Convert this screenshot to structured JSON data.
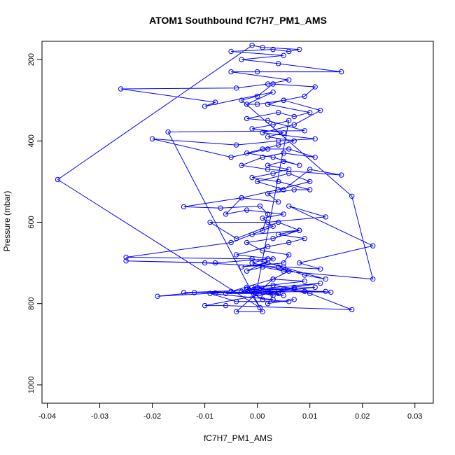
{
  "chart_data": {
    "type": "line",
    "title": "ATOM1 Southbound fC7H7_PM1_AMS",
    "xlabel": "fC7H7_PM1_AMS",
    "ylabel": "Pressure (mbar)",
    "xlim": [
      -0.041,
      0.0335
    ],
    "ylim": [
      1045,
      155
    ],
    "y_reversed": true,
    "x_ticks": [
      -0.04,
      -0.03,
      -0.02,
      -0.01,
      0.0,
      0.01,
      0.02,
      0.03
    ],
    "x_tick_labels": [
      "-0.04",
      "-0.03",
      "-0.02",
      "-0.01",
      "0.00",
      "0.01",
      "0.02",
      "0.03"
    ],
    "y_ticks": [
      200,
      400,
      600,
      800,
      1000
    ],
    "y_tick_labels": [
      "200",
      "400",
      "600",
      "800",
      "1000"
    ],
    "grid": false,
    "legend": "none",
    "series": [
      {
        "color": "#0000ff",
        "marker": "open-circle",
        "points": [
          [
            0.007,
            790
          ],
          [
            0.002,
            800
          ],
          [
            0.003,
            780
          ],
          [
            -0.001,
            770
          ],
          [
            0.005,
            765
          ],
          [
            0.01,
            775
          ],
          [
            0.018,
            815
          ],
          [
            -0.006,
            805
          ],
          [
            -0.01,
            805
          ],
          [
            0.004,
            770
          ],
          [
            0.011,
            760
          ],
          [
            -0.012,
            773
          ],
          [
            -0.019,
            782
          ],
          [
            -0.008,
            774
          ],
          [
            0.002,
            770
          ],
          [
            0.014,
            772
          ],
          [
            -0.001,
            760
          ],
          [
            0.009,
            745
          ],
          [
            0.003,
            740
          ],
          [
            -0.005,
            770
          ],
          [
            0.012,
            750
          ],
          [
            0.007,
            760
          ],
          [
            0.0005,
            780
          ],
          [
            -0.003,
            770
          ],
          [
            0.005,
            780
          ],
          [
            -0.002,
            760
          ],
          [
            0.001,
            820
          ],
          [
            -0.004,
            820
          ],
          [
            0.003,
            740
          ],
          [
            0.006,
            720
          ],
          [
            -0.001,
            700
          ],
          [
            0.002,
            690
          ],
          [
            -0.008,
            700
          ],
          [
            -0.025,
            695
          ],
          [
            -0.01,
            700
          ],
          [
            0.004,
            710
          ],
          [
            0.009,
            730
          ],
          [
            0.013,
            740
          ],
          [
            0.002,
            700
          ],
          [
            -0.003,
            710
          ],
          [
            0.005,
            700
          ],
          [
            0.006,
            680
          ],
          [
            0.001,
            670
          ],
          [
            -0.002,
            650
          ],
          [
            0.003,
            640
          ],
          [
            0.008,
            620
          ],
          [
            0.004,
            600
          ],
          [
            -0.004,
            640
          ],
          [
            -0.009,
            600
          ],
          [
            0.002,
            600
          ],
          [
            0.013,
            587
          ],
          [
            0.006,
            560
          ],
          [
            0.022,
            658
          ],
          [
            0.008,
            700
          ],
          [
            0.012,
            715
          ],
          [
            0.005,
            710
          ],
          [
            -0.001,
            690
          ],
          [
            -0.025,
            686
          ],
          [
            -0.005,
            650
          ],
          [
            0.001,
            620
          ],
          [
            0.002,
            580
          ],
          [
            0.0005,
            560
          ],
          [
            -0.007,
            565
          ],
          [
            -0.014,
            562
          ],
          [
            -0.003,
            540
          ],
          [
            0.004,
            520
          ],
          [
            0.01,
            500
          ],
          [
            0.006,
            480
          ],
          [
            0.0,
            500
          ],
          [
            0.005,
            520
          ],
          [
            0.01,
            470
          ],
          [
            0.016,
            484
          ],
          [
            0.002,
            470
          ],
          [
            -0.003,
            460
          ],
          [
            0.001,
            440
          ],
          [
            0.005,
            430
          ],
          [
            0.011,
            440
          ],
          [
            0.006,
            420
          ],
          [
            0.002,
            420
          ],
          [
            -0.005,
            440
          ],
          [
            -0.02,
            395
          ],
          [
            -0.004,
            410
          ],
          [
            0.004,
            400
          ],
          [
            0.011,
            395
          ],
          [
            0.001,
            380
          ],
          [
            0.007,
            360
          ],
          [
            0.012,
            325
          ],
          [
            0.005,
            300
          ],
          [
            0.0,
            310
          ],
          [
            -0.002,
            310
          ],
          [
            0.003,
            280
          ],
          [
            -0.01,
            315
          ],
          [
            -0.008,
            305
          ],
          [
            -0.026,
            272
          ],
          [
            -0.004,
            270
          ],
          [
            0.002,
            260
          ],
          [
            0.006,
            250
          ],
          [
            -0.005,
            230
          ],
          [
            0.0,
            230
          ],
          [
            0.016,
            230
          ],
          [
            0.004,
            210
          ],
          [
            -0.003,
            200
          ],
          [
            0.005,
            190
          ],
          [
            -0.005,
            180
          ],
          [
            0.003,
            175
          ],
          [
            0.006,
            180
          ],
          [
            0.008,
            175
          ],
          [
            0.001,
            170
          ],
          [
            -0.001,
            165
          ],
          [
            -0.038,
            495
          ],
          [
            0.0005,
            810
          ],
          [
            -0.017,
            378
          ],
          [
            0.009,
            375
          ],
          [
            0.002,
            350
          ],
          [
            -0.002,
            345
          ],
          [
            0.004,
            330
          ],
          [
            0.007,
            340
          ],
          [
            0.01,
            330
          ],
          [
            0.002,
            310
          ],
          [
            0.005,
            300
          ],
          [
            0.009,
            290
          ],
          [
            0.011,
            267
          ],
          [
            0.003,
            260
          ],
          [
            0.0,
            290
          ],
          [
            -0.003,
            300
          ],
          [
            0.018,
            536
          ],
          [
            0.022,
            740
          ],
          [
            0.005,
            720
          ],
          [
            0.001,
            710
          ],
          [
            -0.002,
            720
          ],
          [
            0.003,
            690
          ],
          [
            -0.004,
            680
          ],
          [
            0.002,
            660
          ],
          [
            0.006,
            650
          ],
          [
            0.009,
            640
          ],
          [
            0.004,
            630
          ],
          [
            0.008,
            620
          ],
          [
            -0.001,
            630
          ],
          [
            0.003,
            610
          ],
          [
            0.001,
            590
          ],
          [
            0.005,
            580
          ],
          [
            -0.002,
            570
          ],
          [
            -0.006,
            580
          ],
          [
            -0.003,
            540
          ],
          [
            0.004,
            550
          ],
          [
            0.002,
            530
          ],
          [
            0.007,
            520
          ],
          [
            0.01,
            520
          ],
          [
            0.004,
            500
          ],
          [
            -0.001,
            490
          ],
          [
            0.003,
            480
          ],
          [
            0.006,
            470
          ],
          [
            0.002,
            460
          ],
          [
            0.005,
            450
          ],
          [
            0.008,
            460
          ],
          [
            0.003,
            440
          ],
          [
            -0.002,
            430
          ],
          [
            0.001,
            420
          ],
          [
            0.004,
            410
          ],
          [
            0.007,
            400
          ],
          [
            0.002,
            390
          ],
          [
            0.005,
            380
          ],
          [
            -0.001,
            370
          ],
          [
            0.003,
            360
          ],
          [
            0.006,
            350
          ],
          [
            0.0,
            760
          ],
          [
            0.004,
            775
          ],
          [
            -0.006,
            775
          ],
          [
            0.009,
            770
          ],
          [
            0.013,
            770
          ],
          [
            -0.014,
            773
          ],
          [
            0.007,
            763
          ],
          [
            0.003,
            755
          ],
          [
            -0.002,
            765
          ],
          [
            0.001,
            790
          ],
          [
            0.006,
            795
          ],
          [
            -0.004,
            795
          ],
          [
            -0.009,
            775
          ],
          [
            0.003,
            790
          ]
        ]
      }
    ]
  }
}
